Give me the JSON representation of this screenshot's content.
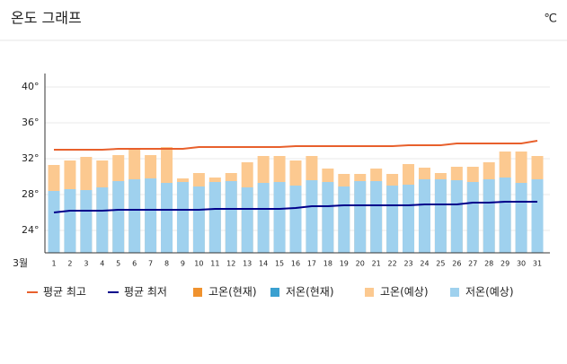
{
  "chart_data": {
    "type": "bar",
    "title": "온도 그래프",
    "unit": "℃",
    "x_label": "3월",
    "categories": [
      "1",
      "2",
      "3",
      "4",
      "5",
      "6",
      "7",
      "8",
      "9",
      "10",
      "11",
      "12",
      "13",
      "14",
      "15",
      "16",
      "17",
      "18",
      "19",
      "20",
      "21",
      "22",
      "23",
      "24",
      "25",
      "26",
      "27",
      "28",
      "29",
      "30",
      "31"
    ],
    "ylim": [
      21.5,
      41.5
    ],
    "yticks": [
      {
        "value": 24,
        "label": "24°"
      },
      {
        "value": 28,
        "label": "28°"
      },
      {
        "value": 32,
        "label": "32°"
      },
      {
        "value": 36,
        "label": "36°"
      },
      {
        "value": 40,
        "label": "40°"
      }
    ],
    "grid": true,
    "legend": "bottom",
    "series": [
      {
        "name": "평균 최고",
        "type": "line",
        "color": "#e8602c",
        "values": [
          33.0,
          33.0,
          33.0,
          33.0,
          33.1,
          33.1,
          33.1,
          33.1,
          33.1,
          33.3,
          33.3,
          33.3,
          33.3,
          33.3,
          33.3,
          33.4,
          33.4,
          33.4,
          33.4,
          33.4,
          33.4,
          33.4,
          33.5,
          33.5,
          33.5,
          33.7,
          33.7,
          33.7,
          33.7,
          33.7,
          34.0
        ]
      },
      {
        "name": "평균 최저",
        "type": "line",
        "color": "#00008b",
        "values": [
          26.0,
          26.2,
          26.2,
          26.2,
          26.3,
          26.3,
          26.3,
          26.3,
          26.3,
          26.3,
          26.4,
          26.4,
          26.4,
          26.4,
          26.4,
          26.5,
          26.7,
          26.7,
          26.8,
          26.8,
          26.8,
          26.8,
          26.8,
          26.9,
          26.9,
          26.9,
          27.1,
          27.1,
          27.2,
          27.2,
          27.2
        ]
      },
      {
        "name": "고온(현재)",
        "type": "bar",
        "color": "#f0922e",
        "values": [
          null,
          null,
          null,
          null,
          null,
          null,
          null,
          null,
          null,
          null,
          null,
          null,
          null,
          null,
          null,
          null,
          null,
          null,
          null,
          null,
          null,
          null,
          null,
          null,
          null,
          null,
          null,
          null,
          null,
          null,
          null
        ]
      },
      {
        "name": "저온(현재)",
        "type": "bar",
        "color": "#3aa0d0",
        "values": [
          null,
          null,
          null,
          null,
          null,
          null,
          null,
          null,
          null,
          null,
          null,
          null,
          null,
          null,
          null,
          null,
          null,
          null,
          null,
          null,
          null,
          null,
          null,
          null,
          null,
          null,
          null,
          null,
          null,
          null,
          null
        ]
      },
      {
        "name": "고온(예상)",
        "type": "bar",
        "color": "#fcc990",
        "values": [
          31.3,
          31.8,
          32.2,
          31.8,
          32.4,
          33.0,
          32.4,
          33.3,
          29.8,
          30.4,
          29.9,
          30.4,
          31.6,
          32.3,
          32.3,
          31.8,
          32.3,
          30.9,
          30.3,
          30.3,
          30.9,
          30.3,
          31.4,
          31.0,
          30.4,
          31.1,
          31.1,
          31.6,
          32.8,
          32.8,
          32.3
        ]
      },
      {
        "name": "저온(예상)",
        "type": "bar",
        "color": "#9fd1ee",
        "values": [
          28.4,
          28.6,
          28.5,
          28.8,
          29.5,
          29.7,
          29.8,
          29.3,
          29.4,
          28.9,
          29.4,
          29.5,
          28.8,
          29.3,
          29.4,
          29.0,
          29.6,
          29.4,
          28.9,
          29.5,
          29.5,
          29.0,
          29.1,
          29.7,
          29.7,
          29.6,
          29.4,
          29.7,
          29.9,
          29.3,
          29.7
        ]
      }
    ]
  }
}
